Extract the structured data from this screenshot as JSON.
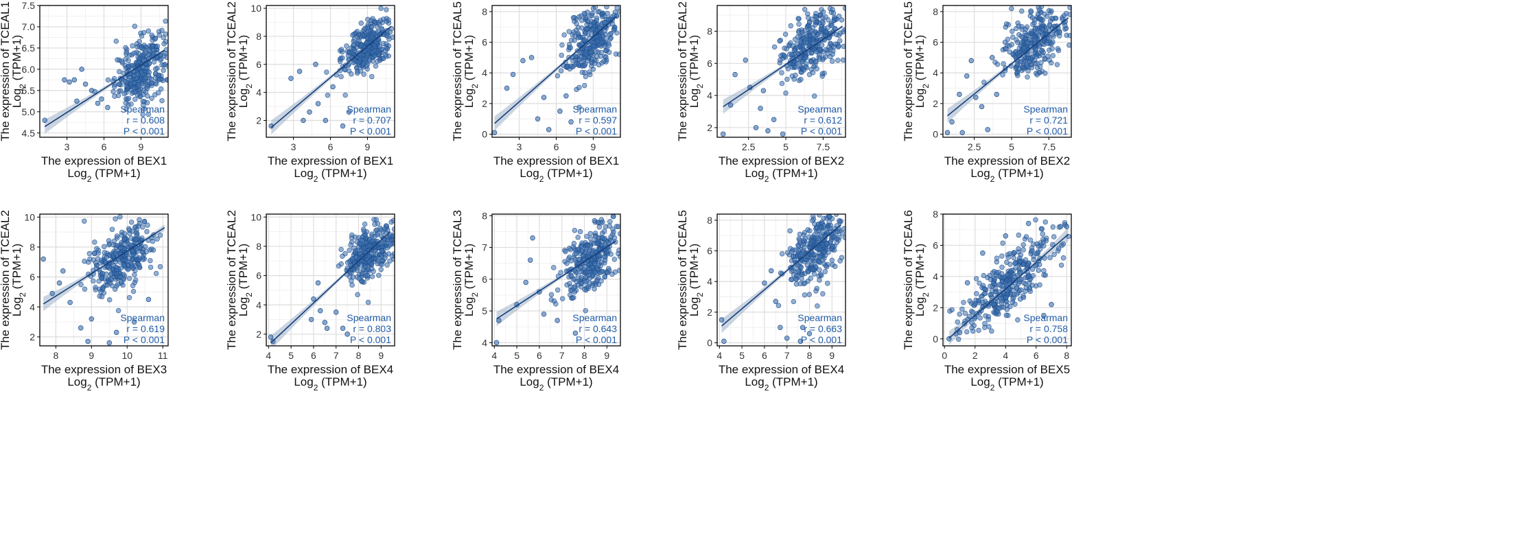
{
  "chart_data": [
    {
      "type": "scatter",
      "title": "",
      "xlabel": "The expression of BEX1",
      "xunit": "(TPM+1)",
      "ylabel": "The expression of TCEAL1",
      "yunit": "(TPM+1)",
      "log_label": "Log",
      "log_sub": "2",
      "xlim": [
        0.8,
        11.2
      ],
      "ylim": [
        4.4,
        7.5
      ],
      "xticks": [
        3,
        6,
        9
      ],
      "yticks": [
        4.5,
        5.0,
        5.5,
        6.0,
        6.5,
        7.0,
        7.5
      ],
      "yticks_text": [
        "4.5",
        "5.0",
        "5.5",
        "6.0",
        "6.5",
        "7.0",
        "7.5"
      ],
      "cluster": {
        "cx": 9.1,
        "cy": 6.0,
        "sx": 1.1,
        "sy": 0.42,
        "n": 320
      },
      "outliers": [
        [
          1.2,
          4.8
        ],
        [
          2.8,
          5.75
        ],
        [
          3.2,
          5.7
        ],
        [
          3.6,
          5.75
        ],
        [
          4.2,
          6.0
        ],
        [
          5.0,
          5.5
        ],
        [
          5.5,
          5.2
        ],
        [
          4.5,
          5.65
        ],
        [
          3.8,
          5.25
        ],
        [
          5.8,
          5.3
        ],
        [
          6.3,
          5.1
        ]
      ],
      "fit": {
        "x0": 1.2,
        "y0": 4.65,
        "x1": 10.9,
        "y1": 6.45
      },
      "method": "Spearman",
      "r": "r = 0.608",
      "p": "P < 0.001"
    },
    {
      "type": "scatter",
      "title": "",
      "xlabel": "The expression of BEX1",
      "xunit": "(TPM+1)",
      "ylabel": "The expression of TCEAL2",
      "yunit": "(TPM+1)",
      "log_label": "Log",
      "log_sub": "2",
      "xlim": [
        0.8,
        11.2
      ],
      "ylim": [
        0.8,
        10.2
      ],
      "xticks": [
        3,
        6,
        9
      ],
      "yticks": [
        2,
        4,
        6,
        8,
        10
      ],
      "yticks_text": [
        "2",
        "4",
        "6",
        "8",
        "10"
      ],
      "cluster": {
        "cx": 9.0,
        "cy": 7.3,
        "sx": 1.0,
        "sy": 1.0,
        "n": 320
      },
      "outliers": [
        [
          1.2,
          1.6
        ],
        [
          2.8,
          5.0
        ],
        [
          3.5,
          5.5
        ],
        [
          4.3,
          2.6
        ],
        [
          5.0,
          3.2
        ],
        [
          5.6,
          2.0
        ],
        [
          6.2,
          4.4
        ],
        [
          3.8,
          2.0
        ],
        [
          4.8,
          6.0
        ],
        [
          7.0,
          1.6
        ],
        [
          7.5,
          2.6
        ]
      ],
      "fit": {
        "x0": 1.2,
        "y0": 1.5,
        "x1": 10.9,
        "y1": 8.7
      },
      "method": "Spearman",
      "r": "r = 0.707",
      "p": "P < 0.001"
    },
    {
      "type": "scatter",
      "title": "",
      "xlabel": "The expression of BEX1",
      "xunit": "(TPM+1)",
      "ylabel": "The expression of TCEAL5",
      "yunit": "(TPM+1)",
      "log_label": "Log",
      "log_sub": "2",
      "xlim": [
        0.8,
        11.2
      ],
      "ylim": [
        -0.2,
        8.4
      ],
      "xticks": [
        3,
        6,
        9
      ],
      "yticks": [
        0,
        2,
        4,
        6,
        8
      ],
      "yticks_text": [
        "0",
        "2",
        "4",
        "6",
        "8"
      ],
      "cluster": {
        "cx": 9.0,
        "cy": 6.2,
        "sx": 1.1,
        "sy": 1.3,
        "n": 320
      },
      "outliers": [
        [
          1.0,
          0.1
        ],
        [
          2.5,
          3.9
        ],
        [
          3.3,
          4.8
        ],
        [
          4.0,
          5.0
        ],
        [
          5.0,
          2.4
        ],
        [
          5.4,
          0.3
        ],
        [
          6.3,
          1.5
        ],
        [
          4.5,
          1.0
        ],
        [
          6.8,
          2.5
        ],
        [
          2.0,
          3.0
        ],
        [
          7.2,
          0.8
        ]
      ],
      "fit": {
        "x0": 1.0,
        "y0": 0.7,
        "x1": 10.9,
        "y1": 7.7
      },
      "method": "Spearman",
      "r": "r = 0.597",
      "p": "P < 0.001"
    },
    {
      "type": "scatter",
      "title": "",
      "xlabel": "The expression of BEX2",
      "xunit": "(TPM+1)",
      "ylabel": "The expression of TCEAL2",
      "yunit": "(TPM+1)",
      "log_label": "Log",
      "log_sub": "2",
      "xlim": [
        0.4,
        9.0
      ],
      "ylim": [
        1.4,
        9.6
      ],
      "xticks": [
        2.5,
        5.0,
        7.5
      ],
      "yticks": [
        2,
        4,
        6,
        8
      ],
      "yticks_text": [
        "2",
        "4",
        "6",
        "8"
      ],
      "cluster": {
        "cx": 6.8,
        "cy": 7.2,
        "sx": 1.1,
        "sy": 1.1,
        "n": 320
      },
      "outliers": [
        [
          0.8,
          1.6
        ],
        [
          1.6,
          5.3
        ],
        [
          2.6,
          4.5
        ],
        [
          3.0,
          2.0
        ],
        [
          3.3,
          3.2
        ],
        [
          3.8,
          1.8
        ],
        [
          2.3,
          6.2
        ],
        [
          3.5,
          4.3
        ],
        [
          4.2,
          2.5
        ],
        [
          1.3,
          3.4
        ],
        [
          4.8,
          1.6
        ]
      ],
      "fit": {
        "x0": 0.8,
        "y0": 3.3,
        "x1": 8.8,
        "y1": 8.3
      },
      "method": "Spearman",
      "r": "r = 0.612",
      "p": "P < 0.001"
    },
    {
      "type": "scatter",
      "title": "",
      "xlabel": "The expression of BEX2",
      "xunit": "(TPM+1)",
      "ylabel": "The expression of TCEAL5",
      "yunit": "(TPM+1)",
      "log_label": "Log",
      "log_sub": "2",
      "xlim": [
        0.4,
        9.0
      ],
      "ylim": [
        -0.2,
        8.4
      ],
      "xticks": [
        2.5,
        5.0,
        7.5
      ],
      "yticks": [
        0,
        2,
        4,
        6,
        8
      ],
      "yticks_text": [
        "0",
        "2",
        "4",
        "6",
        "8"
      ],
      "cluster": {
        "cx": 6.6,
        "cy": 6.1,
        "sx": 1.2,
        "sy": 1.3,
        "n": 320
      },
      "outliers": [
        [
          0.7,
          0.1
        ],
        [
          1.0,
          0.8
        ],
        [
          1.7,
          0.1
        ],
        [
          2.6,
          2.4
        ],
        [
          2.0,
          3.8
        ],
        [
          3.0,
          1.8
        ],
        [
          3.4,
          0.3
        ],
        [
          4.0,
          2.6
        ],
        [
          2.3,
          4.8
        ],
        [
          3.7,
          5.0
        ],
        [
          1.5,
          2.6
        ]
      ],
      "fit": {
        "x0": 0.7,
        "y0": 1.2,
        "x1": 8.8,
        "y1": 7.6
      },
      "method": "Spearman",
      "r": "r = 0.721",
      "p": "P < 0.001"
    },
    {
      "type": "scatter",
      "title": "",
      "xlabel": "The expression of BEX3",
      "xunit": "(TPM+1)",
      "ylabel": "The expression of TCEAL2",
      "yunit": "(TPM+1)",
      "log_label": "Log",
      "log_sub": "2",
      "xlim": [
        7.55,
        11.15
      ],
      "ylim": [
        1.4,
        10.2
      ],
      "xticks": [
        8,
        9,
        10,
        11
      ],
      "yticks": [
        2,
        4,
        6,
        8,
        10
      ],
      "yticks_text": [
        "2",
        "4",
        "6",
        "8",
        "10"
      ],
      "cluster": {
        "cx": 9.8,
        "cy": 7.3,
        "sx": 0.45,
        "sy": 1.1,
        "n": 320
      },
      "outliers": [
        [
          7.65,
          7.2
        ],
        [
          7.9,
          4.9
        ],
        [
          8.1,
          5.6
        ],
        [
          8.4,
          4.3
        ],
        [
          8.7,
          2.6
        ],
        [
          8.9,
          1.7
        ],
        [
          9.0,
          3.2
        ],
        [
          9.5,
          1.6
        ],
        [
          9.7,
          2.3
        ],
        [
          10.2,
          3.0
        ],
        [
          8.2,
          6.4
        ],
        [
          10.6,
          4.5
        ]
      ],
      "fit": {
        "x0": 7.65,
        "y0": 4.2,
        "x1": 11.05,
        "y1": 9.3
      },
      "method": "Spearman",
      "r": "r = 0.619",
      "p": "P < 0.001"
    },
    {
      "type": "scatter",
      "title": "",
      "xlabel": "The expression of BEX4",
      "xunit": "(TPM+1)",
      "ylabel": "The expression of TCEAL2",
      "yunit": "(TPM+1)",
      "log_label": "Log",
      "log_sub": "2",
      "xlim": [
        3.9,
        9.6
      ],
      "ylim": [
        1.2,
        10.2
      ],
      "xticks": [
        4,
        5,
        6,
        7,
        8,
        9
      ],
      "yticks": [
        2,
        4,
        6,
        8,
        10
      ],
      "yticks_text": [
        "2",
        "4",
        "6",
        "8",
        "10"
      ],
      "cluster": {
        "cx": 8.5,
        "cy": 7.6,
        "sx": 0.55,
        "sy": 0.9,
        "n": 320
      },
      "outliers": [
        [
          4.1,
          1.8
        ],
        [
          4.2,
          1.5
        ],
        [
          6.0,
          4.4
        ],
        [
          6.3,
          3.6
        ],
        [
          6.5,
          2.8
        ],
        [
          6.6,
          2.4
        ],
        [
          7.0,
          3.5
        ],
        [
          7.3,
          2.4
        ],
        [
          6.2,
          5.5
        ],
        [
          5.9,
          3.0
        ],
        [
          7.5,
          2.0
        ]
      ],
      "fit": {
        "x0": 4.1,
        "y0": 1.4,
        "x1": 9.4,
        "y1": 9.0
      },
      "method": "Spearman",
      "r": "r = 0.803",
      "p": "P < 0.001"
    },
    {
      "type": "scatter",
      "title": "",
      "xlabel": "The expression of BEX4",
      "xunit": "(TPM+1)",
      "ylabel": "The expression of TCEAL3",
      "yunit": "(TPM+1)",
      "log_label": "Log",
      "log_sub": "2",
      "xlim": [
        3.9,
        9.6
      ],
      "ylim": [
        3.9,
        8.05
      ],
      "xticks": [
        4,
        5,
        6,
        7,
        8,
        9
      ],
      "yticks": [
        4,
        5,
        6,
        7,
        8
      ],
      "yticks_text": [
        "4",
        "5",
        "6",
        "7",
        "8"
      ],
      "cluster": {
        "cx": 8.3,
        "cy": 6.6,
        "sx": 0.65,
        "sy": 0.55,
        "n": 320
      },
      "outliers": [
        [
          4.1,
          4.0
        ],
        [
          4.2,
          4.7
        ],
        [
          5.6,
          6.6
        ],
        [
          5.7,
          7.3
        ],
        [
          5.4,
          5.9
        ],
        [
          6.0,
          5.6
        ],
        [
          6.2,
          4.9
        ],
        [
          7.6,
          4.3
        ],
        [
          5.0,
          5.2
        ],
        [
          6.8,
          4.7
        ]
      ],
      "fit": {
        "x0": 4.1,
        "y0": 4.75,
        "x1": 9.4,
        "y1": 7.2
      },
      "method": "Spearman",
      "r": "r = 0.643",
      "p": "P < 0.001"
    },
    {
      "type": "scatter",
      "title": "",
      "xlabel": "The expression of BEX4",
      "xunit": "(TPM+1)",
      "ylabel": "The expression of TCEAL5",
      "yunit": "(TPM+1)",
      "log_label": "Log",
      "log_sub": "2",
      "xlim": [
        3.9,
        9.6
      ],
      "ylim": [
        -0.2,
        8.4
      ],
      "xticks": [
        4,
        5,
        6,
        7,
        8,
        9
      ],
      "yticks": [
        0,
        2,
        4,
        6,
        8
      ],
      "yticks_text": [
        "0",
        "2",
        "4",
        "6",
        "8"
      ],
      "cluster": {
        "cx": 8.3,
        "cy": 6.1,
        "sx": 0.6,
        "sy": 1.2,
        "n": 320
      },
      "outliers": [
        [
          4.1,
          1.5
        ],
        [
          4.2,
          0.1
        ],
        [
          6.0,
          3.9
        ],
        [
          6.5,
          2.7
        ],
        [
          6.7,
          1.0
        ],
        [
          7.0,
          0.3
        ],
        [
          7.6,
          0.1
        ],
        [
          7.7,
          1.0
        ],
        [
          6.3,
          4.7
        ],
        [
          8.0,
          0.6
        ]
      ],
      "fit": {
        "x0": 4.1,
        "y0": 1.1,
        "x1": 9.4,
        "y1": 7.7
      },
      "method": "Spearman",
      "r": "r = 0.663",
      "p": "P < 0.001"
    },
    {
      "type": "scatter",
      "title": "",
      "xlabel": "The expression of BEX5",
      "xunit": "(TPM+1)",
      "ylabel": "The expression of TCEAL6",
      "yunit": "(TPM+1)",
      "log_label": "Log",
      "log_sub": "2",
      "xlim": [
        -0.1,
        8.3
      ],
      "ylim": [
        -0.45,
        8.0
      ],
      "xticks": [
        0,
        2,
        4,
        6,
        8
      ],
      "yticks": [
        0,
        2,
        4,
        6,
        8
      ],
      "yticks_text": [
        "0",
        "2",
        "4",
        "6",
        "8"
      ],
      "cluster": {
        "cx": 4.2,
        "cy": 3.5,
        "sx": 1.5,
        "sy": 1.5,
        "corr": 0.75,
        "n": 340
      },
      "outliers": [
        [
          0.3,
          0.0
        ],
        [
          1.0,
          0.4
        ],
        [
          1.5,
          3.6
        ],
        [
          2.5,
          5.5
        ],
        [
          4.0,
          6.6
        ],
        [
          5.5,
          7.4
        ],
        [
          7.6,
          7.2
        ],
        [
          7.9,
          7.3
        ],
        [
          8.0,
          7.2
        ],
        [
          6.5,
          1.5
        ],
        [
          7.0,
          2.2
        ]
      ],
      "fit": {
        "x0": 0.3,
        "y0": 0.05,
        "x1": 8.1,
        "y1": 6.7
      },
      "method": "Spearman",
      "r": "r = 0.758",
      "p": "P < 0.001"
    }
  ]
}
